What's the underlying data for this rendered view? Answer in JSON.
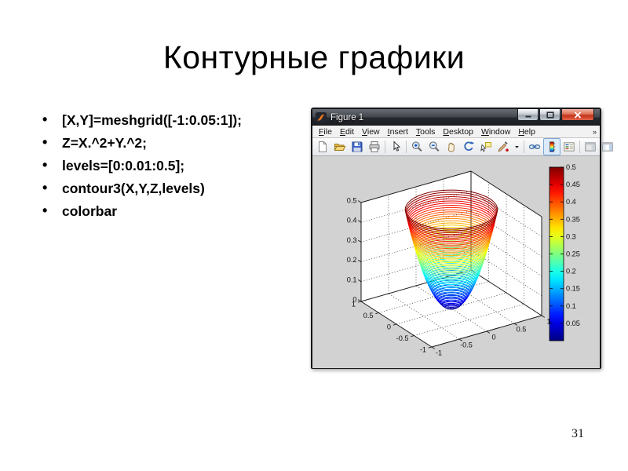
{
  "slide": {
    "title": "Контурные графики",
    "bullets": [
      "[X,Y]=meshgrid([-1:0.05:1]);",
      "Z=X.^2+Y.^2;",
      "levels=[0:0.01:0.5];",
      "contour3(X,Y,Z,levels)",
      "colorbar"
    ],
    "page_number": "31"
  },
  "figure_window": {
    "title": "Figure 1",
    "window_controls": [
      {
        "name": "minimize-icon"
      },
      {
        "name": "maximize-icon"
      },
      {
        "name": "close-icon"
      }
    ],
    "menus": [
      "File",
      "Edit",
      "View",
      "Insert",
      "Tools",
      "Desktop",
      "Window",
      "Help"
    ],
    "menu_overflow": "»",
    "toolbar": [
      {
        "name": "new-figure-icon"
      },
      {
        "name": "open-file-icon"
      },
      {
        "name": "save-figure-icon"
      },
      {
        "name": "print-figure-icon"
      },
      {
        "name": "edit-plot-icon",
        "separator_before": true
      },
      {
        "name": "zoom-in-icon",
        "separator_before": true
      },
      {
        "name": "zoom-out-icon"
      },
      {
        "name": "pan-icon"
      },
      {
        "name": "rotate-3d-icon"
      },
      {
        "name": "data-cursor-icon"
      },
      {
        "name": "brush-icon"
      },
      {
        "name": "brush-dropdown-caret-icon",
        "narrow": true
      },
      {
        "name": "link-plot-icon",
        "separator_before": true
      },
      {
        "name": "insert-colorbar-icon",
        "active": true
      },
      {
        "name": "insert-legend-icon"
      },
      {
        "name": "hide-plot-tools-icon",
        "separator_before": true
      },
      {
        "name": "show-plot-tools-icon"
      }
    ]
  },
  "colors": {
    "canvas_bg": "#d2d2d2",
    "titlebar_text": "#f4f4f4",
    "close_button_red": "#c3341c",
    "toolbar_active_bg": "#dcebfc",
    "axes_wall": "#ffffff"
  },
  "chart_data": {
    "type": "contour3",
    "function": "Z = X.^2 + Y.^2",
    "x_domain": [
      -1,
      1
    ],
    "y_domain": [
      -1,
      1
    ],
    "grid_step": 0.05,
    "levels": {
      "min": 0,
      "max": 0.5,
      "step": 0.01
    },
    "colormap": "jet",
    "grid": true,
    "view": {
      "azimuth": -37.5,
      "elevation": 30
    },
    "x_ticks": [
      -1,
      -0.5,
      0,
      0.5,
      1
    ],
    "x_tick_labels": [
      "-1",
      "-0.5",
      "0",
      "0.5",
      "1"
    ],
    "y_ticks": [
      1,
      0.5,
      0,
      -0.5,
      -1
    ],
    "y_tick_labels": [
      "1",
      "0.5",
      "0",
      "-0.5",
      "-1"
    ],
    "z_ticks": [
      0,
      0.1,
      0.2,
      0.3,
      0.4,
      0.5
    ],
    "z_tick_labels": [
      "0",
      "0.1",
      "0.2",
      "0.3",
      "0.4",
      "0.5"
    ],
    "colorbar": {
      "min": 0,
      "max": 0.5,
      "ticks": [
        0.05,
        0.1,
        0.15,
        0.2,
        0.25,
        0.3,
        0.35,
        0.4,
        0.45,
        0.5
      ],
      "tick_labels": [
        "0.05",
        "0.1",
        "0.15",
        "0.2",
        "0.25",
        "0.3",
        "0.35",
        "0.4",
        "0.45",
        "0.5"
      ]
    }
  }
}
